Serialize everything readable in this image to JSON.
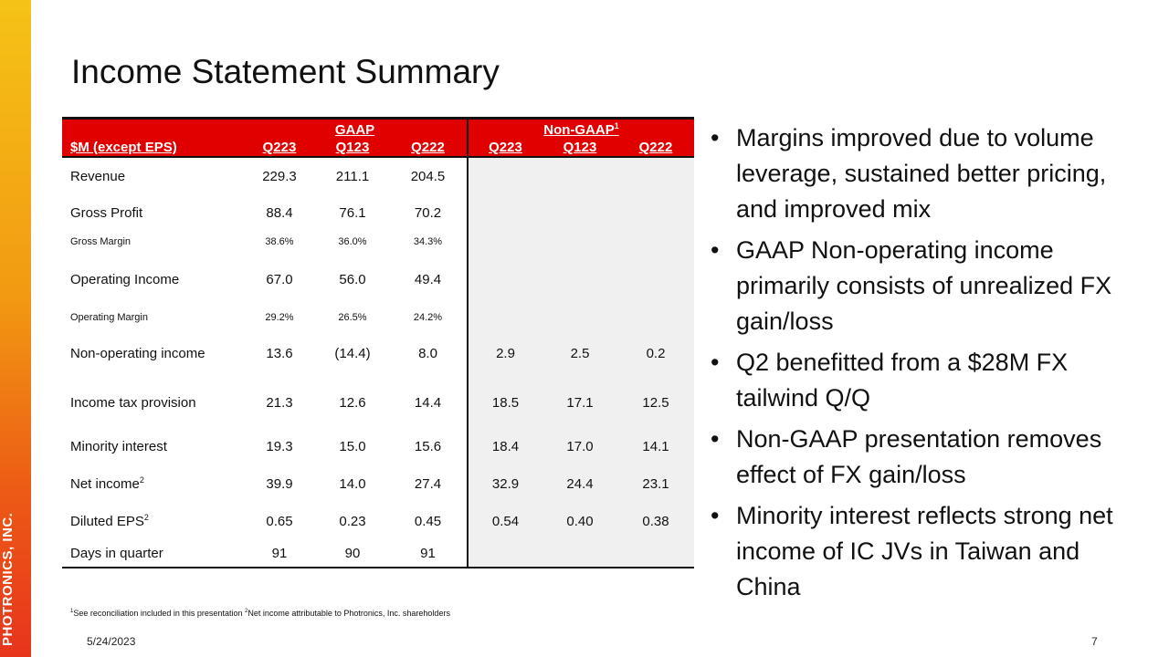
{
  "brand": {
    "name": "PHOTRONICS, INC.",
    "color": "#e00000"
  },
  "slide": {
    "title": "Income Statement Summary",
    "date": "5/24/2023",
    "page_number": "7"
  },
  "table": {
    "gaap_header": "GAAP",
    "nongaap_header": "Non-GAAP",
    "nongaap_sup": "1",
    "unit_label": "$M (except EPS)",
    "gaap_columns": [
      "Q223",
      "Q123",
      "Q222"
    ],
    "nongaap_columns": [
      "Q223",
      "Q123",
      "Q222"
    ],
    "rows": [
      {
        "label": "Revenue",
        "sup": "",
        "gaap": [
          "229.3",
          "211.1",
          "204.5"
        ],
        "nongaap": [
          "",
          "",
          ""
        ]
      },
      {
        "label": "Gross Profit",
        "sup": "",
        "gaap": [
          "88.4",
          "76.1",
          "70.2"
        ],
        "nongaap": [
          "",
          "",
          ""
        ]
      },
      {
        "label": "Gross Margin",
        "sup": "",
        "gaap": [
          "38.6%",
          "36.0%",
          "34.3%"
        ],
        "nongaap": [
          "",
          "",
          ""
        ]
      },
      {
        "label": "Operating Income",
        "sup": "",
        "gaap": [
          "67.0",
          "56.0",
          "49.4"
        ],
        "nongaap": [
          "",
          "",
          ""
        ]
      },
      {
        "label": "Operating Margin",
        "sup": "",
        "gaap": [
          "29.2%",
          "26.5%",
          "24.2%"
        ],
        "nongaap": [
          "",
          "",
          ""
        ]
      },
      {
        "label": "Non-operating income",
        "sup": "",
        "gaap": [
          "13.6",
          "(14.4)",
          "8.0"
        ],
        "nongaap": [
          "2.9",
          "2.5",
          "0.2"
        ]
      },
      {
        "label": "Income tax provision",
        "sup": "",
        "gaap": [
          "21.3",
          "12.6",
          "14.4"
        ],
        "nongaap": [
          "18.5",
          "17.1",
          "12.5"
        ]
      },
      {
        "label": "Minority interest",
        "sup": "",
        "gaap": [
          "19.3",
          "15.0",
          "15.6"
        ],
        "nongaap": [
          "18.4",
          "17.0",
          "14.1"
        ]
      },
      {
        "label": "Net income",
        "sup": "2",
        "gaap": [
          "39.9",
          "14.0",
          "27.4"
        ],
        "nongaap": [
          "32.9",
          "24.4",
          "23.1"
        ]
      },
      {
        "label": "Diluted EPS",
        "sup": "2",
        "gaap": [
          "0.65",
          "0.23",
          "0.45"
        ],
        "nongaap": [
          "0.54",
          "0.40",
          "0.38"
        ]
      },
      {
        "label": "Days in quarter",
        "sup": "",
        "gaap": [
          "91",
          "90",
          "91"
        ],
        "nongaap": [
          "",
          "",
          ""
        ]
      }
    ]
  },
  "footnotes": {
    "sup1": "1",
    "note1": "See reconciliation included in this presentation",
    "sup2": "2",
    "note2": "Net income attributable to Photronics, Inc. shareholders"
  },
  "bullets": [
    "Margins improved due to volume leverage, sustained better pricing, and improved mix",
    "GAAP Non-operating income primarily consists of unrealized FX gain/loss",
    "Q2 benefitted from a $28M FX tailwind Q/Q",
    "Non-GAAP presentation removes effect of FX gain/loss",
    "Minority interest reflects strong net income of IC JVs in Taiwan and China"
  ]
}
